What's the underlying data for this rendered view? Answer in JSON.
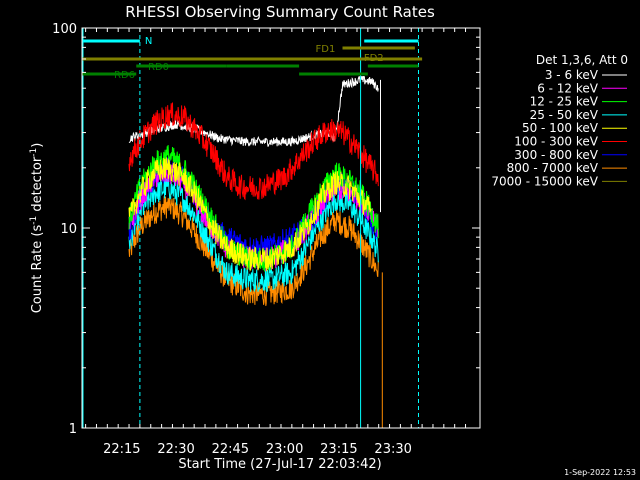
{
  "chart_data": {
    "type": "line",
    "title": "RHESSI Observing Summary Count Rates",
    "xlabel": "Start Time (27-Jul-17 22:03:42)",
    "ylabel_main": "Count Rate (s",
    "ylabel_sup1": "-1",
    "ylabel_mid": " detector",
    "ylabel_sup2": "-1",
    "ylabel_end": ")",
    "yscale": "log",
    "ylim": [
      1,
      100
    ],
    "xlim_min": [
      0,
      110
    ],
    "yticks": [
      {
        "value": 1,
        "label": "1"
      },
      {
        "value": 10,
        "label": "10"
      },
      {
        "value": 100,
        "label": "100"
      }
    ],
    "xticks": [
      {
        "value": 11,
        "label": "22:15"
      },
      {
        "value": 26,
        "label": "22:30"
      },
      {
        "value": 41,
        "label": "22:45"
      },
      {
        "value": 56,
        "label": "23:00"
      },
      {
        "value": 71,
        "label": "23:15"
      },
      {
        "value": 86,
        "label": "23:30"
      }
    ],
    "legend_header": "Det 1,3,6, Att 0",
    "legend_position": "right",
    "series": [
      {
        "name": "3 - 6 keV",
        "color": "#ffffff",
        "points": [
          [
            13,
            28
          ],
          [
            20,
            31
          ],
          [
            26,
            33
          ],
          [
            32,
            31
          ],
          [
            38,
            28
          ],
          [
            45,
            27
          ],
          [
            52,
            27
          ],
          [
            58,
            27
          ],
          [
            64,
            29
          ],
          [
            68,
            30
          ],
          [
            70,
            28
          ],
          [
            72,
            52
          ],
          [
            77,
            55
          ],
          [
            80,
            54
          ],
          [
            82,
            50
          ]
        ]
      },
      {
        "name": "6 - 12 keV",
        "color": "#ff00ff",
        "points": [
          [
            13,
            10
          ],
          [
            16,
            14
          ],
          [
            20,
            18
          ],
          [
            24,
            19
          ],
          [
            28,
            17
          ],
          [
            32,
            13
          ],
          [
            36,
            10
          ],
          [
            40,
            8
          ],
          [
            46,
            7
          ],
          [
            52,
            7
          ],
          [
            58,
            8
          ],
          [
            62,
            10
          ],
          [
            66,
            13
          ],
          [
            70,
            16
          ],
          [
            74,
            15
          ],
          [
            77,
            14
          ],
          [
            80,
            12
          ],
          [
            82,
            10
          ]
        ]
      },
      {
        "name": "12 - 25 keV",
        "color": "#00ff00",
        "points": [
          [
            13,
            11
          ],
          [
            16,
            16
          ],
          [
            20,
            21
          ],
          [
            24,
            23
          ],
          [
            28,
            20
          ],
          [
            32,
            15
          ],
          [
            36,
            11
          ],
          [
            40,
            8
          ],
          [
            46,
            7
          ],
          [
            52,
            7
          ],
          [
            58,
            8
          ],
          [
            62,
            11
          ],
          [
            66,
            15
          ],
          [
            70,
            19
          ],
          [
            74,
            17
          ],
          [
            77,
            15
          ],
          [
            80,
            12
          ],
          [
            82,
            10
          ]
        ]
      },
      {
        "name": "25 - 50 keV",
        "color": "#00ffff",
        "points": [
          [
            13,
            8.5
          ],
          [
            16,
            12
          ],
          [
            20,
            15
          ],
          [
            24,
            16
          ],
          [
            28,
            14
          ],
          [
            32,
            11
          ],
          [
            36,
            8
          ],
          [
            40,
            6
          ],
          [
            46,
            5.5
          ],
          [
            52,
            5.5
          ],
          [
            58,
            6
          ],
          [
            62,
            8
          ],
          [
            66,
            11
          ],
          [
            70,
            14
          ],
          [
            74,
            13
          ],
          [
            77,
            11
          ],
          [
            80,
            9
          ],
          [
            82,
            7.5
          ]
        ]
      },
      {
        "name": "50 - 100 keV",
        "color": "#ffff00",
        "points": [
          [
            13,
            11
          ],
          [
            16,
            15
          ],
          [
            20,
            19
          ],
          [
            24,
            20
          ],
          [
            28,
            18
          ],
          [
            32,
            14
          ],
          [
            36,
            10
          ],
          [
            40,
            8
          ],
          [
            46,
            7
          ],
          [
            52,
            7
          ],
          [
            58,
            8
          ],
          [
            62,
            10
          ],
          [
            66,
            14
          ],
          [
            70,
            17
          ],
          [
            74,
            16
          ],
          [
            77,
            14
          ],
          [
            80,
            12
          ]
        ]
      },
      {
        "name": "100 - 300 keV",
        "color": "#ff0000",
        "points": [
          [
            13,
            22
          ],
          [
            16,
            27
          ],
          [
            20,
            33
          ],
          [
            24,
            37
          ],
          [
            28,
            36
          ],
          [
            32,
            30
          ],
          [
            36,
            24
          ],
          [
            40,
            18
          ],
          [
            44,
            16
          ],
          [
            50,
            16
          ],
          [
            56,
            18
          ],
          [
            60,
            22
          ],
          [
            64,
            27
          ],
          [
            68,
            31
          ],
          [
            72,
            30
          ],
          [
            76,
            25
          ],
          [
            80,
            20
          ],
          [
            82,
            18
          ]
        ]
      },
      {
        "name": "300 - 800 keV",
        "color": "#0000ff",
        "points": [
          [
            13,
            9.5
          ],
          [
            16,
            14
          ],
          [
            20,
            18
          ],
          [
            24,
            20
          ],
          [
            28,
            18
          ],
          [
            32,
            14
          ],
          [
            36,
            10
          ],
          [
            40,
            9
          ],
          [
            46,
            8
          ],
          [
            52,
            8
          ],
          [
            58,
            9
          ],
          [
            62,
            10
          ],
          [
            66,
            13
          ],
          [
            70,
            17
          ],
          [
            74,
            16
          ],
          [
            77,
            14
          ],
          [
            80,
            11
          ],
          [
            82,
            9
          ]
        ]
      },
      {
        "name": "800 - 7000 keV",
        "color": "#ff8c00",
        "points": [
          [
            13,
            7.5
          ],
          [
            16,
            10
          ],
          [
            20,
            12
          ],
          [
            24,
            13
          ],
          [
            28,
            11.5
          ],
          [
            32,
            9
          ],
          [
            36,
            7
          ],
          [
            40,
            5.5
          ],
          [
            46,
            4.7
          ],
          [
            52,
            4.7
          ],
          [
            58,
            5
          ],
          [
            62,
            6.5
          ],
          [
            66,
            9
          ],
          [
            70,
            11
          ],
          [
            74,
            10
          ],
          [
            77,
            8.5
          ],
          [
            80,
            7
          ],
          [
            82,
            6
          ]
        ]
      },
      {
        "name": "7000 - 15000 keV",
        "color": "#808000",
        "points": []
      }
    ],
    "overlays": {
      "cyan_bars": [
        {
          "label": "N",
          "x0": 0,
          "x1": 16
        },
        {
          "label": "",
          "x0": 78,
          "x1": 93
        }
      ],
      "cyan_verticals": [
        16,
        77,
        93
      ],
      "olive_bar_top": {
        "label": "FD1",
        "x0": 72,
        "x1": 92
      },
      "olive_bar_mid": {
        "label": "FD2",
        "x0": 0,
        "x1": 94
      },
      "green_bars": [
        {
          "label": "RD0",
          "x0": 15,
          "x1": 40
        },
        {
          "label": "RD6",
          "x0": 0,
          "x1": 15
        },
        {
          "label": "",
          "x0": 40,
          "x1": 60
        },
        {
          "label": "",
          "x0": 60,
          "x1": 79
        },
        {
          "label": "",
          "x0": 79,
          "x1": 93
        }
      ]
    }
  },
  "footer": {
    "timestamp": "1-Sep-2022 12:53"
  }
}
